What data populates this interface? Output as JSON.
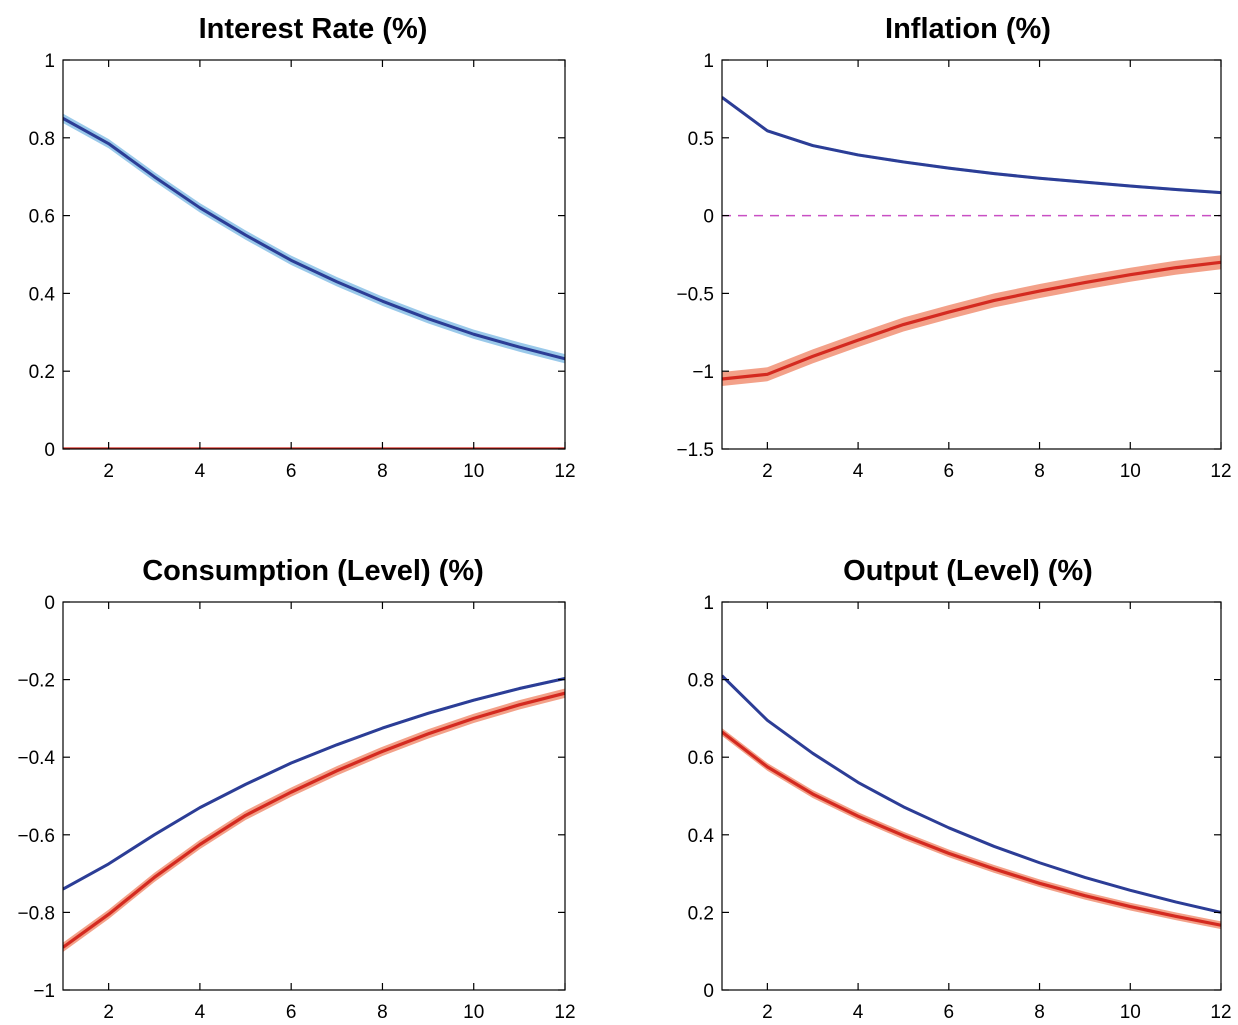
{
  "colors": {
    "blue_line": "#2c3d96",
    "blue_band": "#8fc3e8",
    "red_line": "#d42a20",
    "red_band": "#f2977c",
    "zero_dashed": "#c94fc4"
  },
  "chart_data": [
    {
      "type": "line",
      "title": "Interest Rate (%)",
      "xlim": [
        1,
        12
      ],
      "ylim": [
        0,
        1
      ],
      "xticks": [
        2,
        4,
        6,
        8,
        10,
        12
      ],
      "xtick_labels": [
        "2",
        "4",
        "6",
        "8",
        "10",
        "12"
      ],
      "yticks": [
        0,
        0.2,
        0.4,
        0.6,
        0.8,
        1
      ],
      "ytick_labels": [
        "0",
        "0.2",
        "0.4",
        "0.6",
        "0.8",
        "1"
      ],
      "x": [
        1,
        2,
        3,
        4,
        5,
        6,
        7,
        8,
        9,
        10,
        11,
        12
      ],
      "series": [
        {
          "color": "blue",
          "values": [
            0.85,
            0.785,
            0.7,
            0.62,
            0.55,
            0.485,
            0.43,
            0.38,
            0.335,
            0.295,
            0.262,
            0.232
          ],
          "band": 0.012
        },
        {
          "color": "red",
          "values": [
            0,
            0,
            0,
            0,
            0,
            0,
            0,
            0,
            0,
            0,
            0,
            0
          ],
          "band": 0
        }
      ],
      "zero_line": false
    },
    {
      "type": "line",
      "title": "Inflation (%)",
      "xlim": [
        1,
        12
      ],
      "ylim": [
        -1.5,
        1
      ],
      "xticks": [
        2,
        4,
        6,
        8,
        10,
        12
      ],
      "xtick_labels": [
        "2",
        "4",
        "6",
        "8",
        "10",
        "12"
      ],
      "yticks": [
        -1.5,
        -1,
        -0.5,
        0,
        0.5,
        1
      ],
      "ytick_labels": [
        "−1.5",
        "−1",
        "−0.5",
        "0",
        "0.5",
        "1"
      ],
      "x": [
        1,
        2,
        3,
        4,
        5,
        6,
        7,
        8,
        9,
        10,
        11,
        12
      ],
      "series": [
        {
          "color": "blue",
          "values": [
            0.76,
            0.545,
            0.45,
            0.39,
            0.345,
            0.305,
            0.27,
            0.24,
            0.215,
            0.19,
            0.168,
            0.148
          ],
          "band": 0.01
        },
        {
          "color": "red",
          "values": [
            -1.05,
            -1.02,
            -0.905,
            -0.8,
            -0.7,
            -0.62,
            -0.545,
            -0.485,
            -0.43,
            -0.38,
            -0.335,
            -0.3
          ],
          "band": 0.045
        }
      ],
      "zero_line": true
    },
    {
      "type": "line",
      "title": "Consumption (Level) (%)",
      "xlim": [
        1,
        12
      ],
      "ylim": [
        -1,
        0
      ],
      "xticks": [
        2,
        4,
        6,
        8,
        10,
        12
      ],
      "xtick_labels": [
        "2",
        "4",
        "6",
        "8",
        "10",
        "12"
      ],
      "yticks": [
        -1,
        -0.8,
        -0.6,
        -0.4,
        -0.2,
        0
      ],
      "ytick_labels": [
        "−1",
        "−0.8",
        "−0.6",
        "−0.4",
        "−0.2",
        "0"
      ],
      "x": [
        1,
        2,
        3,
        4,
        5,
        6,
        7,
        8,
        9,
        10,
        11,
        12
      ],
      "series": [
        {
          "color": "blue",
          "values": [
            -0.74,
            -0.675,
            -0.6,
            -0.53,
            -0.47,
            -0.415,
            -0.368,
            -0.325,
            -0.287,
            -0.253,
            -0.223,
            -0.197
          ],
          "band": 0.004
        },
        {
          "color": "red",
          "values": [
            -0.89,
            -0.805,
            -0.71,
            -0.625,
            -0.55,
            -0.49,
            -0.435,
            -0.385,
            -0.34,
            -0.3,
            -0.265,
            -0.235
          ],
          "band": 0.012
        }
      ],
      "zero_line": false
    },
    {
      "type": "line",
      "title": "Output (Level) (%)",
      "xlim": [
        1,
        12
      ],
      "ylim": [
        0,
        1
      ],
      "xticks": [
        2,
        4,
        6,
        8,
        10,
        12
      ],
      "xtick_labels": [
        "2",
        "4",
        "6",
        "8",
        "10",
        "12"
      ],
      "yticks": [
        0,
        0.2,
        0.4,
        0.6,
        0.8,
        1
      ],
      "ytick_labels": [
        "0",
        "0.2",
        "0.4",
        "0.6",
        "0.8",
        "1"
      ],
      "x": [
        1,
        2,
        3,
        4,
        5,
        6,
        7,
        8,
        9,
        10,
        11,
        12
      ],
      "series": [
        {
          "color": "blue",
          "values": [
            0.81,
            0.695,
            0.61,
            0.535,
            0.472,
            0.418,
            0.37,
            0.328,
            0.29,
            0.257,
            0.227,
            0.2
          ],
          "band": 0.003
        },
        {
          "color": "red",
          "values": [
            0.665,
            0.575,
            0.505,
            0.448,
            0.398,
            0.352,
            0.312,
            0.275,
            0.243,
            0.215,
            0.19,
            0.167
          ],
          "band": 0.01
        }
      ],
      "zero_line": false
    }
  ]
}
